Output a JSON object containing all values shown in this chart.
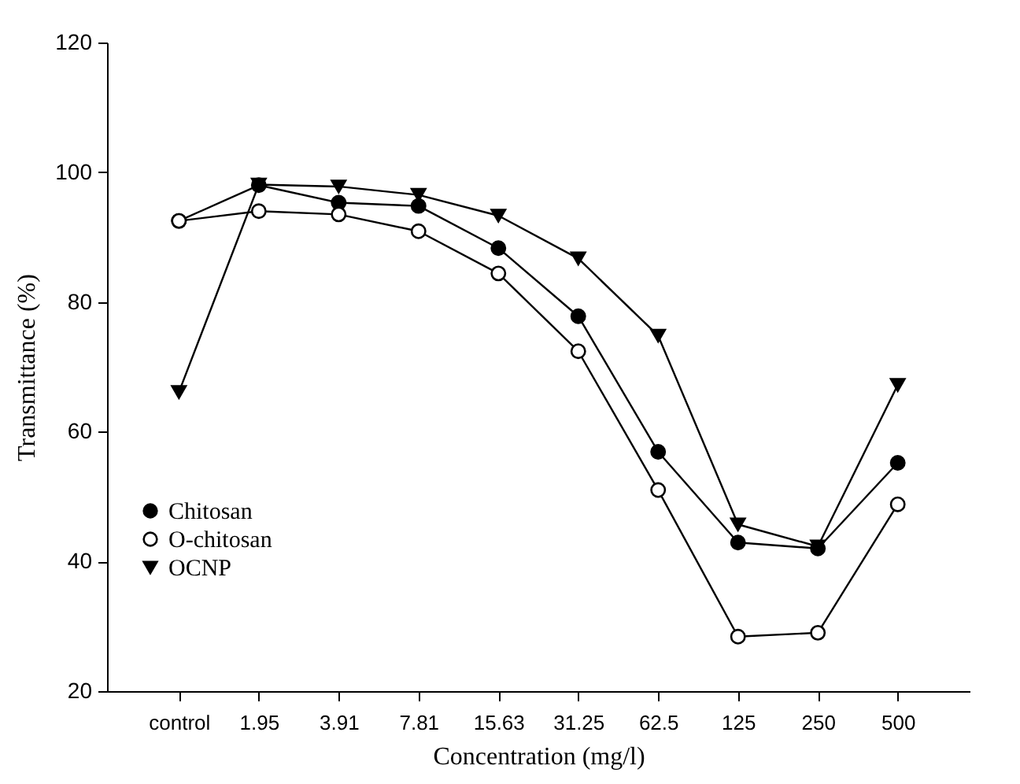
{
  "chart_data": {
    "type": "line",
    "xlabel": "Concentration (mg/l)",
    "ylabel": "Transmittance (%)",
    "categories": [
      "control",
      "1.95",
      "3.91",
      "7.81",
      "15.63",
      "31.25",
      "62.5",
      "125",
      "250",
      "500"
    ],
    "series": [
      {
        "name": "Chitosan",
        "color": "#000000",
        "marker": "circle",
        "values": [
          92.5,
          98,
          95.3,
          94.8,
          88.3,
          77.8,
          56.9,
          42.9,
          42.0,
          55.2
        ]
      },
      {
        "name": "O-chitosan",
        "color": "#000000",
        "marker": "circle",
        "values": [
          92.5,
          94,
          93.5,
          90.9,
          84.4,
          72.4,
          51.0,
          28.4,
          29.0,
          48.8
        ]
      },
      {
        "name": "OCNP",
        "color": "#000000",
        "marker": "triangle",
        "values": [
          66.1,
          98.1,
          97.8,
          96.5,
          93.3,
          86.7,
          74.8,
          45.7,
          42.3,
          67.2
        ]
      }
    ],
    "ylim": [
      20,
      120
    ],
    "yticks": [
      20,
      40,
      60,
      80,
      100,
      120
    ],
    "grid": false,
    "legend": "bottom left",
    "line_style": "solid"
  }
}
